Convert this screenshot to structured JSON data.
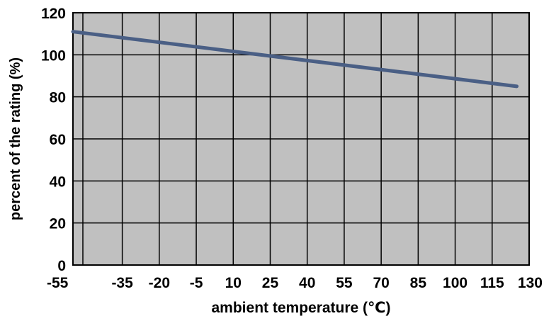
{
  "chart_data": {
    "type": "line",
    "xlabel": "ambient temperature (℃)",
    "ylabel": "percent of the rating (%)",
    "x_ticks": [
      -55,
      -35,
      -20,
      -5,
      10,
      25,
      40,
      55,
      70,
      85,
      100,
      115,
      130
    ],
    "x_tick_labels": [
      "-55",
      "-35",
      "-20",
      "-5",
      "10",
      "25",
      "40",
      "55",
      "70",
      "85",
      "100",
      "115",
      "130"
    ],
    "y_ticks": [
      0,
      20,
      40,
      60,
      80,
      100,
      120
    ],
    "y_tick_labels": [
      "0",
      "20",
      "40",
      "60",
      "80",
      "100",
      "120"
    ],
    "xlim": [
      -55,
      130
    ],
    "ylim": [
      0,
      120
    ],
    "grid": true,
    "plot_background": "#c0c0c0",
    "series": [
      {
        "color": "#4a5f85",
        "x": [
          -55,
          125
        ],
        "y": [
          111,
          85
        ]
      }
    ]
  }
}
